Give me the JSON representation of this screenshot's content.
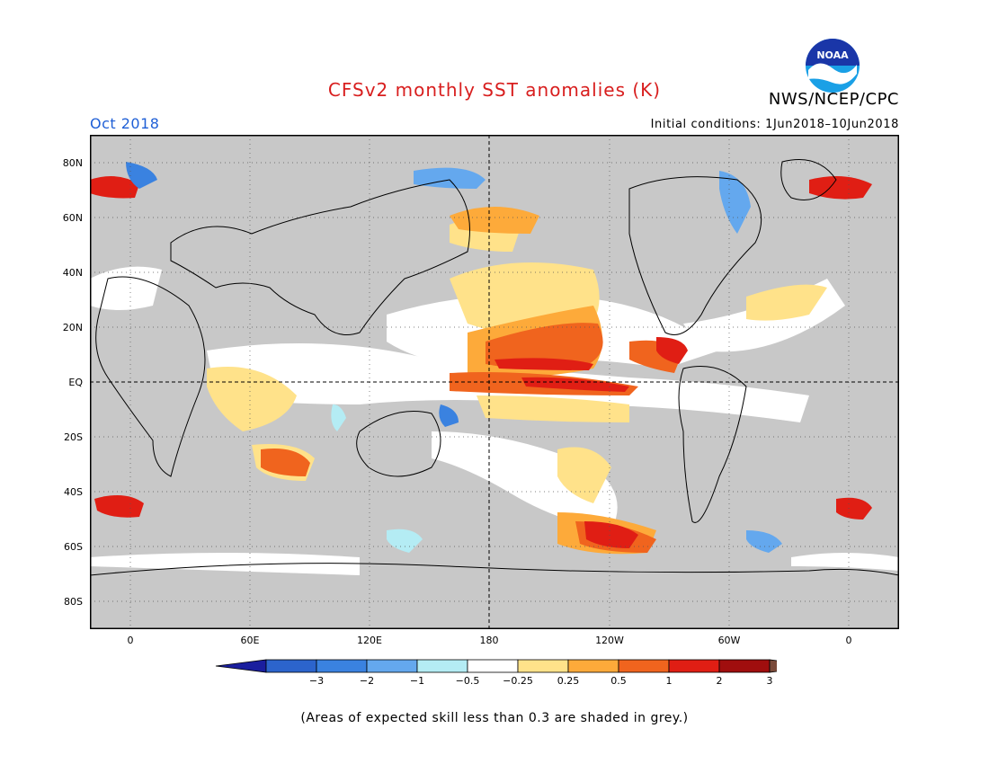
{
  "header": {
    "title": "CFSv2 monthly SST anomalies (K)",
    "agency": "NWS/NCEP/CPC",
    "month": "Oct 2018",
    "initial_conditions": "Initial conditions:  1Jun2018–10Jun2018",
    "logo_text": "NOAA"
  },
  "map": {
    "lat_labels": [
      "80N",
      "60N",
      "40N",
      "20N",
      "EQ",
      "20S",
      "40S",
      "60S",
      "80S"
    ],
    "lon_labels": [
      "0",
      "60E",
      "120E",
      "180",
      "120W",
      "60W",
      "0"
    ],
    "background_color": "#c8c8c8"
  },
  "colorbar": {
    "labels": [
      "-3",
      "-2",
      "-1",
      "-0.5",
      "-0.25",
      "0.25",
      "0.5",
      "1",
      "2",
      "3"
    ],
    "colors": [
      "#1a1e9e",
      "#2c64cc",
      "#3a82e0",
      "#64a8ee",
      "#b4ecf4",
      "#ffffff",
      "#ffe28a",
      "#fdaa3a",
      "#f0641e",
      "#e01e14",
      "#a00e0e",
      "#7a4a3a"
    ]
  },
  "footnote": "(Areas of expected skill less than 0.3 are shaded in grey.)"
}
